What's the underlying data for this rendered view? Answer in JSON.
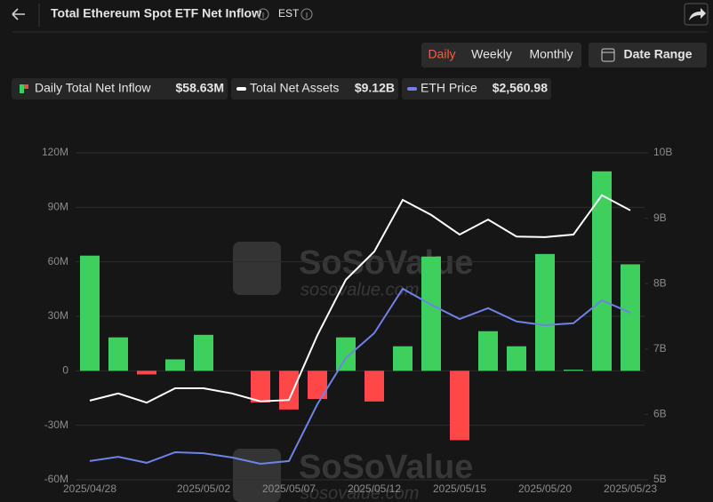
{
  "header": {
    "title": "Total Ethereum Spot ETF Net Inflow",
    "timezone": "EST"
  },
  "tabs": [
    "Daily",
    "Weekly",
    "Monthly"
  ],
  "date_range": "Date Range",
  "watermark": {
    "brand": "SoSoValue",
    "url": "sosovalue.com"
  },
  "chart_data": {
    "type": "bar",
    "categories": [
      "2025/04/28",
      null,
      null,
      null,
      "2025/05/02",
      null,
      null,
      "2025/05/07",
      null,
      null,
      "2025/05/12",
      null,
      null,
      "2025/05/15",
      null,
      null,
      "2025/05/20",
      null,
      null,
      "2025/05/23"
    ],
    "series": [
      {
        "name": "Daily Total Net Inflow",
        "latest": "$58.63M",
        "color": "#3ecf5d",
        "negative_color": "#ff4747",
        "values": [
          63.4,
          18.4,
          -2,
          6.3,
          19.8,
          0,
          -17.4,
          -21.3,
          -15.5,
          18.4,
          -16.9,
          13.5,
          62.9,
          -38.2,
          21.8,
          13.5,
          64.3,
          0.6,
          109.8,
          58.63
        ]
      },
      {
        "name": "Total Net Assets",
        "latest": "$9.12B",
        "type": "line",
        "axis": "y2",
        "color": "#ffffff",
        "values": [
          6.21,
          6.32,
          6.18,
          6.4,
          6.4,
          6.32,
          6.2,
          6.22,
          7.21,
          8.06,
          8.49,
          9.28,
          9.05,
          8.75,
          8.98,
          8.72,
          8.71,
          8.75,
          9.35,
          9.12
        ]
      },
      {
        "name": "ETH Price",
        "latest": "$2,560.98",
        "type": "line",
        "axis": "y3",
        "color": "#6f82e8",
        "values": [
          1804,
          1826,
          1795,
          1849,
          1844,
          1822,
          1790,
          1804,
          2094,
          2330,
          2457,
          2683,
          2602,
          2529,
          2584,
          2516,
          2497,
          2507,
          2624,
          2560.98
        ]
      }
    ],
    "ylim": [
      -60,
      120
    ],
    "yticks": [
      {
        "value": -60,
        "label": "-60M"
      },
      {
        "value": -30,
        "label": "-30M"
      },
      0,
      {
        "value": 30,
        "label": "30M"
      },
      {
        "value": 60,
        "label": "60M"
      },
      {
        "value": 90,
        "label": "90M"
      },
      {
        "value": 120,
        "label": "120M"
      }
    ],
    "y2lim": [
      5,
      10
    ],
    "y2ticks": [
      {
        "value": 5,
        "label": "5B"
      },
      {
        "value": 6,
        "label": "6B"
      },
      {
        "value": 7,
        "label": "7B"
      },
      {
        "value": 8,
        "label": "8B"
      },
      {
        "value": 9,
        "label": "9B"
      },
      {
        "value": 10,
        "label": "10B"
      }
    ],
    "grid": true
  }
}
